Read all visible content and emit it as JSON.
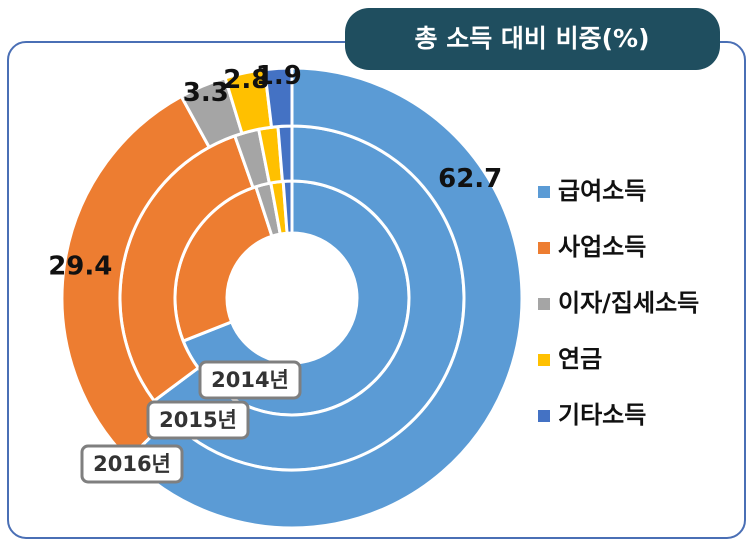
{
  "chart_data": {
    "type": "donut",
    "title": "총 소득 대비 비중(%)",
    "categories": [
      "급여소득",
      "사업소득",
      "이자/집세소득",
      "연금",
      "기타소득"
    ],
    "colors": [
      "#5b9bd5",
      "#ed7d31",
      "#a5a5a5",
      "#ffc000",
      "#4472c4"
    ],
    "series": [
      {
        "name": "2014년",
        "values": [
          69.0,
          26.0,
          2.1,
          1.7,
          1.2
        ]
      },
      {
        "name": "2015년",
        "values": [
          64.8,
          29.8,
          2.3,
          1.8,
          1.3
        ]
      },
      {
        "name": "2016년",
        "values": [
          62.7,
          29.4,
          3.3,
          2.8,
          1.9
        ]
      }
    ]
  }
}
